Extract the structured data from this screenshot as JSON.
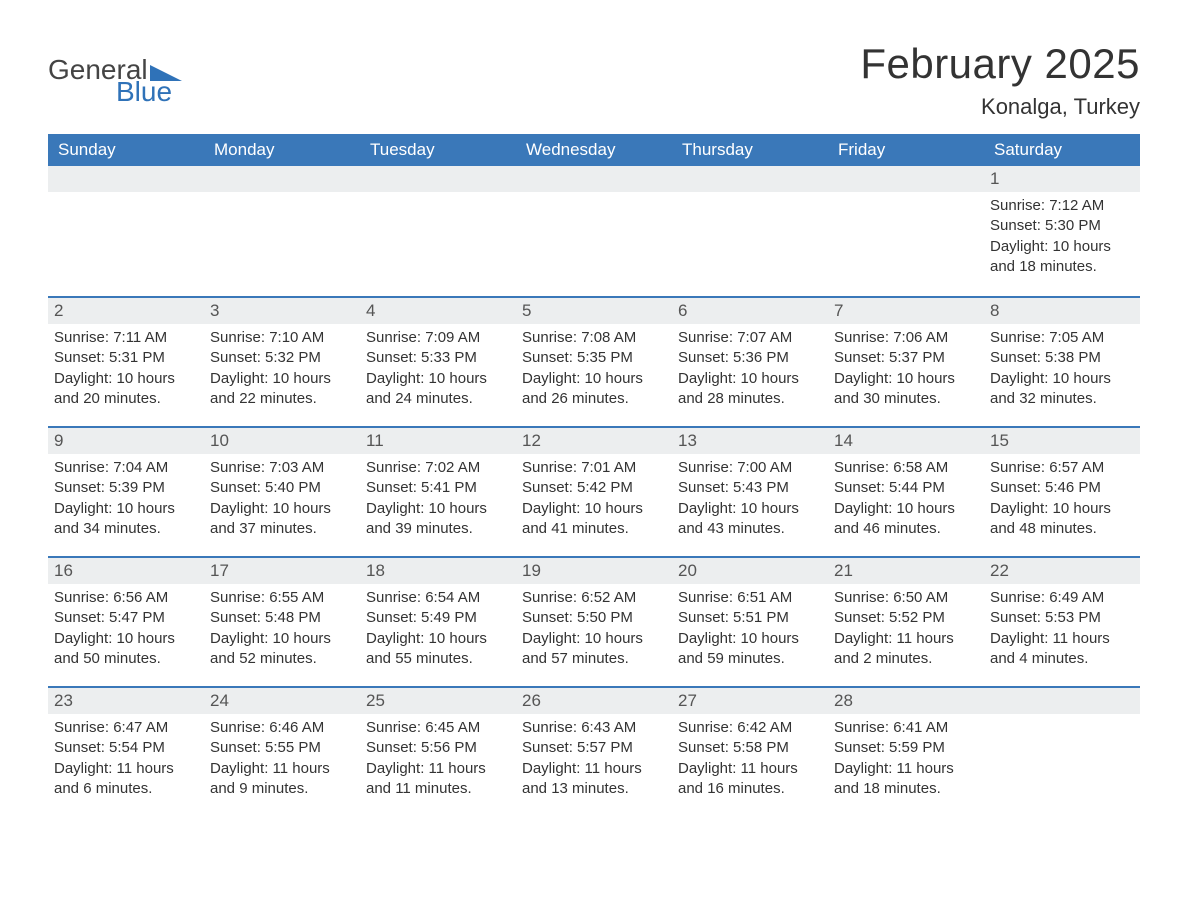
{
  "brand": {
    "text_general": "General",
    "text_blue": "Blue",
    "icon_color": "#2f72b8"
  },
  "title": {
    "month": "February 2025",
    "location": "Konalga, Turkey"
  },
  "colors": {
    "header_bg": "#3a78b9",
    "header_text": "#ffffff",
    "row_stripe": "#eceeef",
    "border": "#3a78b9",
    "body_text": "#333333"
  },
  "day_names": [
    "Sunday",
    "Monday",
    "Tuesday",
    "Wednesday",
    "Thursday",
    "Friday",
    "Saturday"
  ],
  "labels": {
    "sunrise_prefix": "Sunrise: ",
    "sunset_prefix": "Sunset: ",
    "daylight_prefix": "Daylight: "
  },
  "weeks": [
    [
      null,
      null,
      null,
      null,
      null,
      null,
      {
        "day": "1",
        "sunrise": "7:12 AM",
        "sunset": "5:30 PM",
        "daylight": "10 hours and 18 minutes."
      }
    ],
    [
      {
        "day": "2",
        "sunrise": "7:11 AM",
        "sunset": "5:31 PM",
        "daylight": "10 hours and 20 minutes."
      },
      {
        "day": "3",
        "sunrise": "7:10 AM",
        "sunset": "5:32 PM",
        "daylight": "10 hours and 22 minutes."
      },
      {
        "day": "4",
        "sunrise": "7:09 AM",
        "sunset": "5:33 PM",
        "daylight": "10 hours and 24 minutes."
      },
      {
        "day": "5",
        "sunrise": "7:08 AM",
        "sunset": "5:35 PM",
        "daylight": "10 hours and 26 minutes."
      },
      {
        "day": "6",
        "sunrise": "7:07 AM",
        "sunset": "5:36 PM",
        "daylight": "10 hours and 28 minutes."
      },
      {
        "day": "7",
        "sunrise": "7:06 AM",
        "sunset": "5:37 PM",
        "daylight": "10 hours and 30 minutes."
      },
      {
        "day": "8",
        "sunrise": "7:05 AM",
        "sunset": "5:38 PM",
        "daylight": "10 hours and 32 minutes."
      }
    ],
    [
      {
        "day": "9",
        "sunrise": "7:04 AM",
        "sunset": "5:39 PM",
        "daylight": "10 hours and 34 minutes."
      },
      {
        "day": "10",
        "sunrise": "7:03 AM",
        "sunset": "5:40 PM",
        "daylight": "10 hours and 37 minutes."
      },
      {
        "day": "11",
        "sunrise": "7:02 AM",
        "sunset": "5:41 PM",
        "daylight": "10 hours and 39 minutes."
      },
      {
        "day": "12",
        "sunrise": "7:01 AM",
        "sunset": "5:42 PM",
        "daylight": "10 hours and 41 minutes."
      },
      {
        "day": "13",
        "sunrise": "7:00 AM",
        "sunset": "5:43 PM",
        "daylight": "10 hours and 43 minutes."
      },
      {
        "day": "14",
        "sunrise": "6:58 AM",
        "sunset": "5:44 PM",
        "daylight": "10 hours and 46 minutes."
      },
      {
        "day": "15",
        "sunrise": "6:57 AM",
        "sunset": "5:46 PM",
        "daylight": "10 hours and 48 minutes."
      }
    ],
    [
      {
        "day": "16",
        "sunrise": "6:56 AM",
        "sunset": "5:47 PM",
        "daylight": "10 hours and 50 minutes."
      },
      {
        "day": "17",
        "sunrise": "6:55 AM",
        "sunset": "5:48 PM",
        "daylight": "10 hours and 52 minutes."
      },
      {
        "day": "18",
        "sunrise": "6:54 AM",
        "sunset": "5:49 PM",
        "daylight": "10 hours and 55 minutes."
      },
      {
        "day": "19",
        "sunrise": "6:52 AM",
        "sunset": "5:50 PM",
        "daylight": "10 hours and 57 minutes."
      },
      {
        "day": "20",
        "sunrise": "6:51 AM",
        "sunset": "5:51 PM",
        "daylight": "10 hours and 59 minutes."
      },
      {
        "day": "21",
        "sunrise": "6:50 AM",
        "sunset": "5:52 PM",
        "daylight": "11 hours and 2 minutes."
      },
      {
        "day": "22",
        "sunrise": "6:49 AM",
        "sunset": "5:53 PM",
        "daylight": "11 hours and 4 minutes."
      }
    ],
    [
      {
        "day": "23",
        "sunrise": "6:47 AM",
        "sunset": "5:54 PM",
        "daylight": "11 hours and 6 minutes."
      },
      {
        "day": "24",
        "sunrise": "6:46 AM",
        "sunset": "5:55 PM",
        "daylight": "11 hours and 9 minutes."
      },
      {
        "day": "25",
        "sunrise": "6:45 AM",
        "sunset": "5:56 PM",
        "daylight": "11 hours and 11 minutes."
      },
      {
        "day": "26",
        "sunrise": "6:43 AM",
        "sunset": "5:57 PM",
        "daylight": "11 hours and 13 minutes."
      },
      {
        "day": "27",
        "sunrise": "6:42 AM",
        "sunset": "5:58 PM",
        "daylight": "11 hours and 16 minutes."
      },
      {
        "day": "28",
        "sunrise": "6:41 AM",
        "sunset": "5:59 PM",
        "daylight": "11 hours and 18 minutes."
      },
      null
    ]
  ]
}
